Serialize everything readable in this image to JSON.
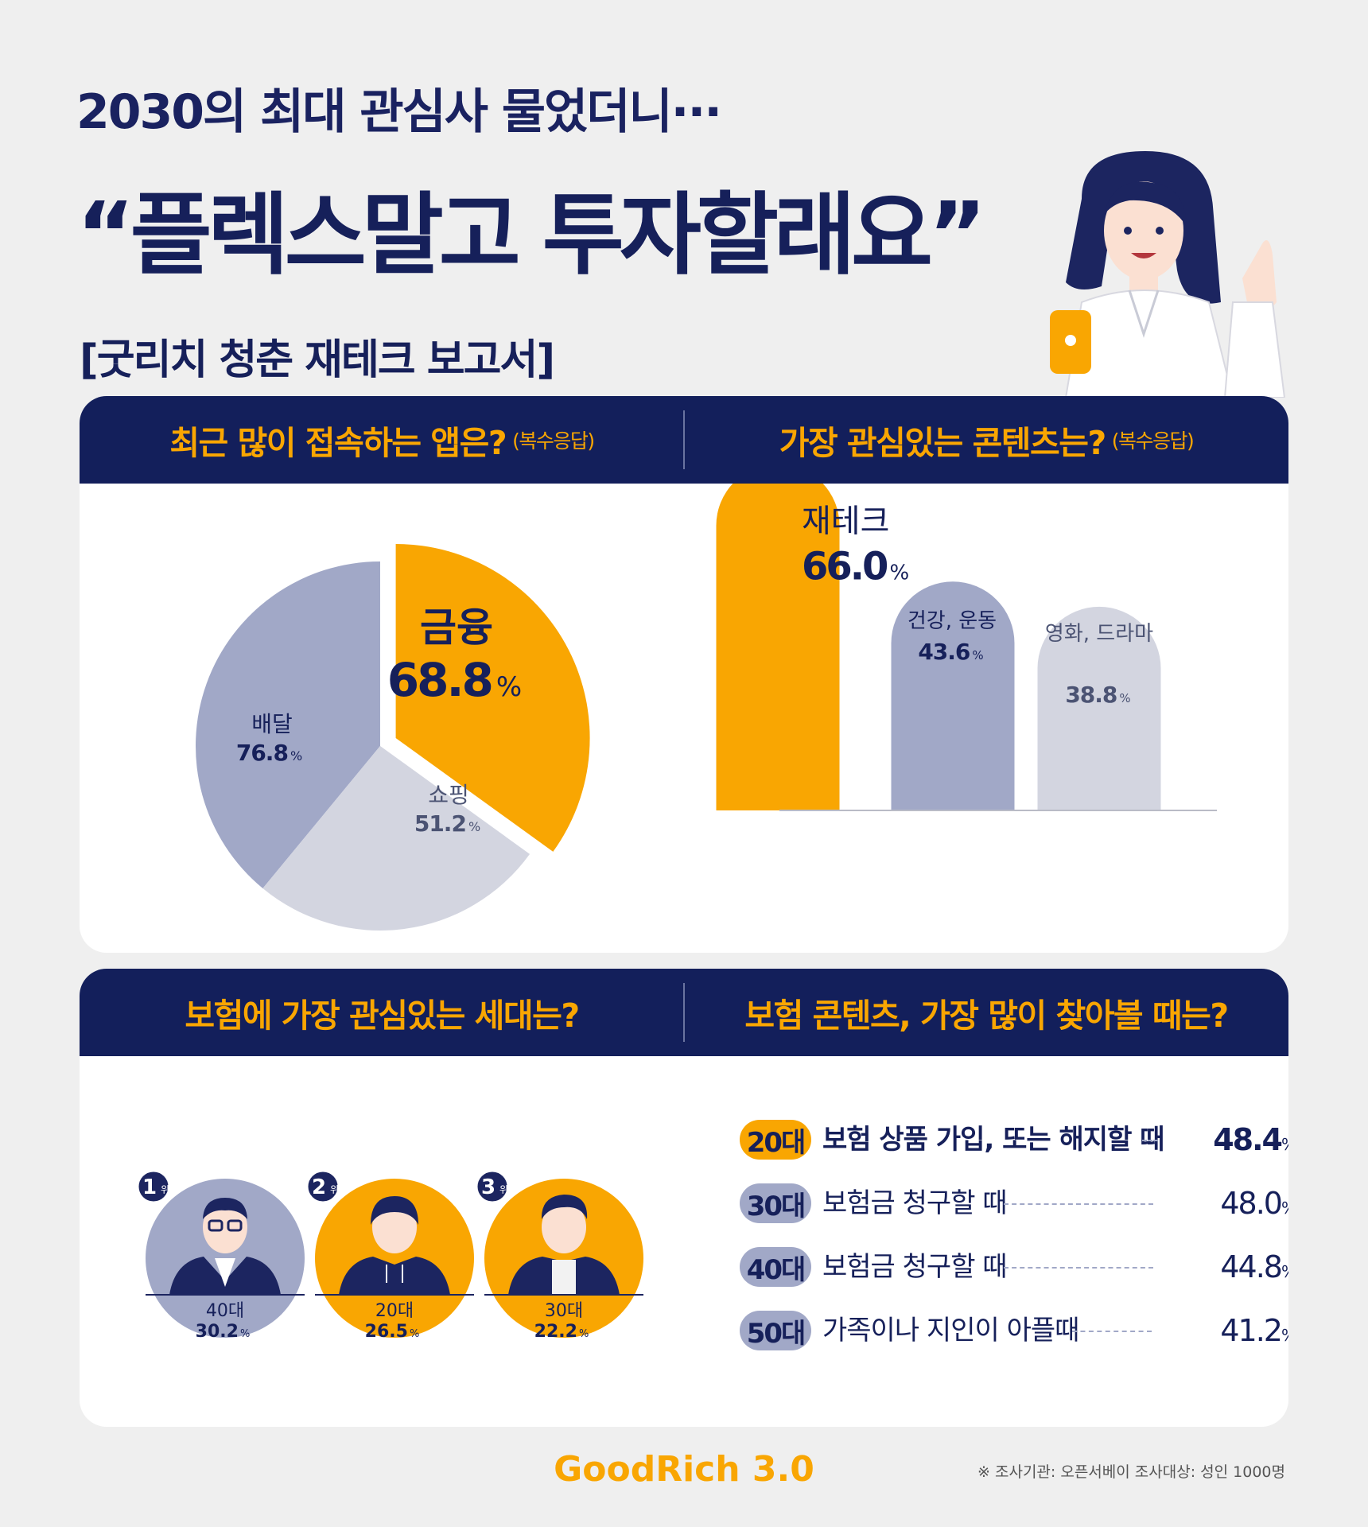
{
  "header": {
    "subtitle": "2030의 최대 관심사 물었더니···",
    "title": "“플렉스말고 투자할래요”",
    "report_label": "[굿리치 청춘 재테크 보고서]"
  },
  "colors": {
    "navy": "#131f5b",
    "accent": "#f9a602",
    "gray": "#a1a8c7",
    "light_gray": "#d3d5e0"
  },
  "sections": {
    "apps_question": "최근 많이 접속하는 앱은?",
    "apps_note": "(복수응답)",
    "content_question": "가장 관심있는 콘텐츠는?",
    "content_note": "(복수응답)",
    "generation_question": "보험에 가장 관심있는 세대는?",
    "insurance_question": "보험 콘텐츠, 가장 많이 찾아볼 때는?"
  },
  "chart_data": [
    {
      "type": "pie",
      "title": "최근 많이 접속하는 앱은?",
      "unit": "%",
      "slices": [
        {
          "label": "금융",
          "value": 68.8,
          "highlight": true
        },
        {
          "label": "쇼핑",
          "value": 51.2
        },
        {
          "label": "배달",
          "value": 76.8
        }
      ]
    },
    {
      "type": "bar",
      "title": "가장 관심있는 콘텐츠는?",
      "unit": "%",
      "categories": [
        "재테크",
        "건강, 운동",
        "영화, 드라마"
      ],
      "values": [
        66.0,
        43.6,
        38.8
      ]
    },
    {
      "type": "table",
      "title": "보험에 가장 관심있는 세대는?",
      "unit": "%",
      "rows": [
        {
          "rank": "1",
          "rank_suffix": "위",
          "age": "40대",
          "value": "30.2"
        },
        {
          "rank": "2",
          "rank_suffix": "위",
          "age": "20대",
          "value": "26.5"
        },
        {
          "rank": "3",
          "rank_suffix": "위",
          "age": "30대",
          "value": "22.2"
        }
      ]
    },
    {
      "type": "table",
      "title": "보험 콘텐츠, 가장 많이 찾아볼 때는?",
      "unit": "%",
      "rows": [
        {
          "age": "20대",
          "label": "보험 상품 가입, 또는 해지할 때",
          "value": "48.4"
        },
        {
          "age": "30대",
          "label": "보험금 청구할 때",
          "value": "48.0"
        },
        {
          "age": "40대",
          "label": "보험금 청구할 때",
          "value": "44.8"
        },
        {
          "age": "50대",
          "label": "가족이나 지인이 아플때",
          "value": "41.2"
        }
      ]
    }
  ],
  "footer": {
    "brand": "GoodRich 3.0",
    "source": "※ 조사기관: 오픈서베이 조사대상: 성인 1000명"
  }
}
